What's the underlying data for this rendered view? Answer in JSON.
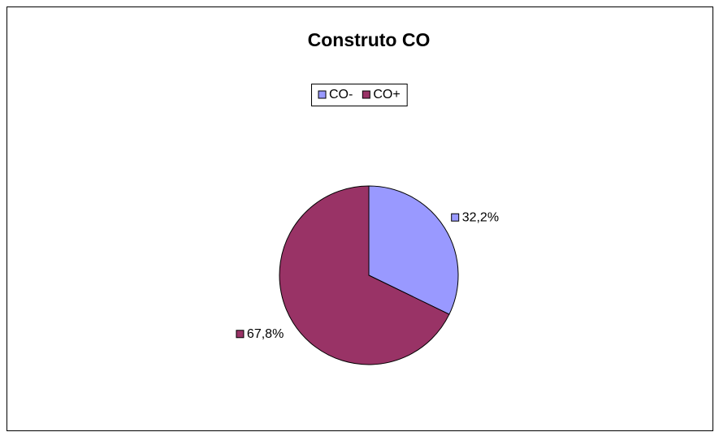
{
  "chart_data": {
    "type": "pie",
    "title": "Construto CO",
    "categories": [
      "CO-",
      "CO+"
    ],
    "values": [
      32.2,
      67.8
    ],
    "value_labels": [
      "32,2%",
      "67,8%"
    ],
    "colors": [
      "#9999ff",
      "#993366"
    ],
    "legend": "top"
  }
}
